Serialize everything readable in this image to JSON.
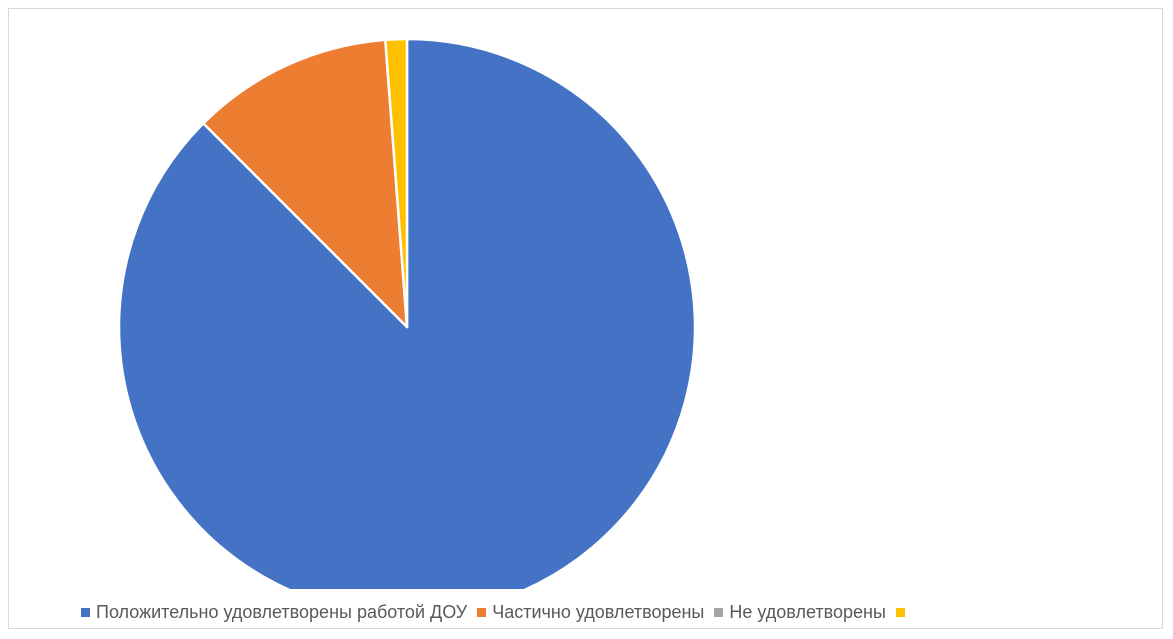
{
  "chart_data": {
    "type": "pie",
    "title": "",
    "slices": [
      {
        "label": "Положительно  удовлетворены работой ДОУ",
        "value": 87.5,
        "color": "#4472C4"
      },
      {
        "label": "Частично удовлетворены",
        "value": 11.3,
        "color": "#ED7D31"
      },
      {
        "label": "Не удовлетворены",
        "value": 0,
        "color": "#A5A5A5"
      },
      {
        "label": "",
        "value": 1.2,
        "color": "#FFC000"
      }
    ],
    "legend_position": "bottom"
  }
}
